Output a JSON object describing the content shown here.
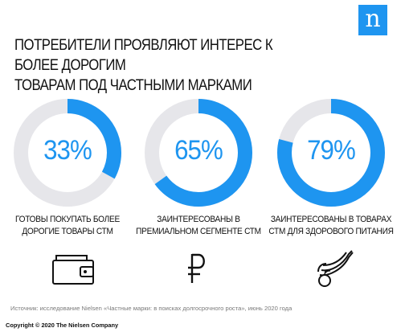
{
  "title": {
    "line1": "ПОТРЕБИТЕЛИ ПРОЯВЛЯЮТ ИНТЕРЕС К БОЛЕЕ ДОРОГИМ",
    "line2": "ТОВАРАМ ПОД ЧАСТНЫМИ МАРКАМИ"
  },
  "logo": {
    "letter": "n",
    "color": "#1e95f0"
  },
  "colors": {
    "accent": "#1e95f0",
    "track": "#e6e6ea",
    "text": "#111111"
  },
  "chart_data": {
    "type": "pie",
    "items": [
      {
        "value": 33,
        "label": "33%",
        "caption1": "ГОТОВЫ ПОКУПАТЬ БОЛЕЕ",
        "caption2": "ДОРОГИЕ ТОВАРЫ СТМ",
        "icon": "wallet-icon"
      },
      {
        "value": 65,
        "label": "65%",
        "caption1": "ЗАИНТЕРЕСОВАНЫ В",
        "caption2": "ПРЕМИАЛЬНОМ СЕГМЕНТЕ СТМ",
        "icon": "ruble-icon"
      },
      {
        "value": 79,
        "label": "79%",
        "caption1": "ЗАИНТЕРЕСОВАНЫ В ТОВАРАХ",
        "caption2": "СТМ ДЛЯ ЗДОРОВОГО ПИТАНИЯ",
        "icon": "fruit-icon"
      }
    ]
  },
  "source": "Источник: исследование Nielsen «Частные марки: в поисках долгосрочного роста», июнь 2020 года",
  "copyright": "Copyright © 2020 The Nielsen Company"
}
